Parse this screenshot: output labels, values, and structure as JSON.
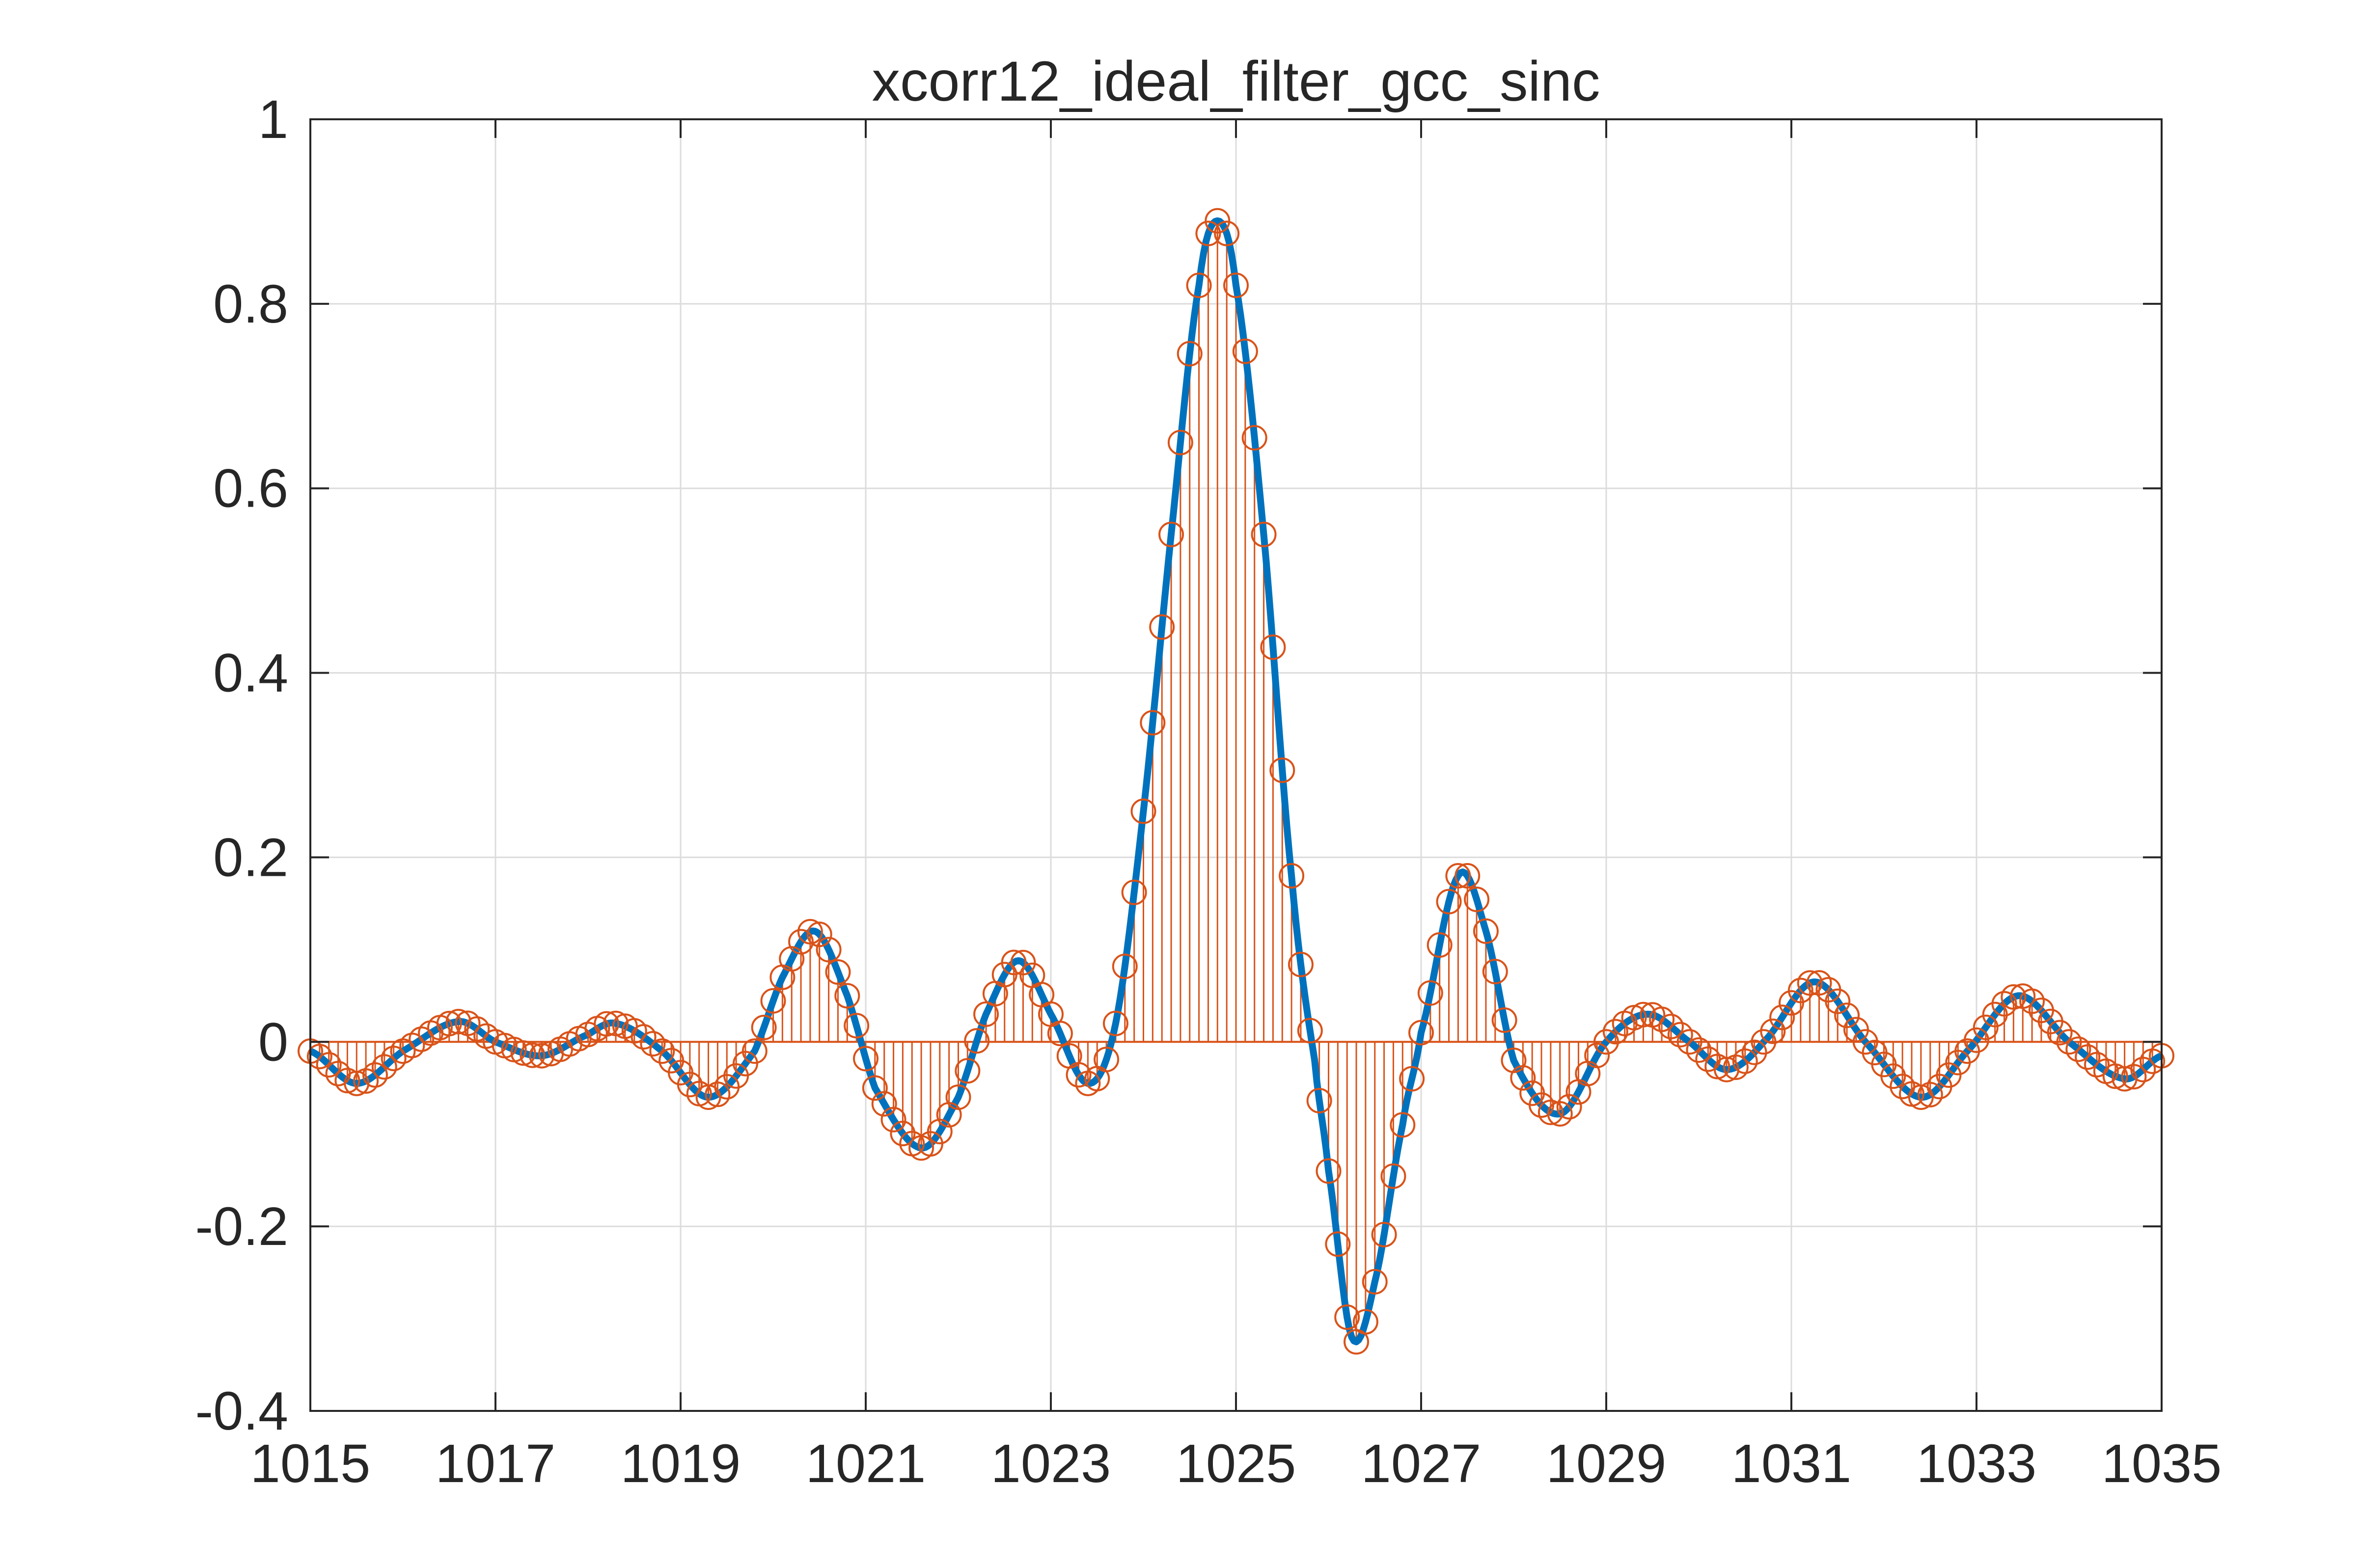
{
  "chart_data": {
    "type": "line",
    "title": "xcorr12_ideal_filter_gcc_sinc",
    "xlabel": "",
    "ylabel": "",
    "xlim": [
      1015,
      1035
    ],
    "ylim": [
      -0.4,
      1
    ],
    "xticks": [
      1015,
      1017,
      1019,
      1021,
      1023,
      1025,
      1027,
      1029,
      1031,
      1033,
      1035
    ],
    "xtick_labels": [
      "1015",
      "1017",
      "1019",
      "1021",
      "1023",
      "1025",
      "1027",
      "1029",
      "1031",
      "1033",
      "1035"
    ],
    "yticks": [
      -0.4,
      -0.2,
      0,
      0.2,
      0.4,
      0.6,
      0.8,
      1
    ],
    "ytick_labels": [
      "-0.4",
      "-0.2",
      "0",
      "0.2",
      "0.4",
      "0.6",
      "0.8",
      "1"
    ],
    "grid": true,
    "legend": "none",
    "series": [
      {
        "style": "line",
        "color": "#0072BD",
        "x": [
          1015.0,
          1015.5,
          1016.0,
          1016.6,
          1017.0,
          1017.5,
          1018.0,
          1018.3,
          1018.8,
          1019.3,
          1019.8,
          1020.1,
          1020.45,
          1020.8,
          1021.1,
          1021.6,
          1022.0,
          1022.3,
          1022.65,
          1023.0,
          1023.4,
          1023.7,
          1024.0,
          1024.3,
          1024.6,
          1024.8,
          1025.0,
          1025.3,
          1025.6,
          1025.85,
          1026.0,
          1026.25,
          1026.5,
          1026.8,
          1027.0,
          1027.4,
          1027.7,
          1028.0,
          1028.5,
          1029.0,
          1029.45,
          1029.9,
          1030.3,
          1030.7,
          1031.25,
          1031.8,
          1032.4,
          1032.9,
          1033.45,
          1034.0,
          1034.6,
          1035.0
        ],
        "y": [
          -0.01,
          -0.045,
          -0.01,
          0.022,
          0.0,
          -0.015,
          0.008,
          0.02,
          -0.01,
          -0.06,
          -0.01,
          0.07,
          0.12,
          0.05,
          -0.05,
          -0.115,
          -0.06,
          0.03,
          0.088,
          0.03,
          -0.045,
          0.02,
          0.25,
          0.55,
          0.82,
          0.89,
          0.82,
          0.55,
          0.18,
          -0.02,
          -0.14,
          -0.32,
          -0.26,
          -0.09,
          0.01,
          0.18,
          0.12,
          -0.02,
          -0.078,
          0.0,
          0.03,
          0.0,
          -0.03,
          0.0,
          0.065,
          0.0,
          -0.06,
          -0.01,
          0.05,
          0.0,
          -0.04,
          -0.015
        ]
      },
      {
        "style": "stem",
        "color": "#D95319",
        "marker": "circle",
        "x_step": 0.1,
        "note_source": "same curve sampled"
      }
    ]
  }
}
